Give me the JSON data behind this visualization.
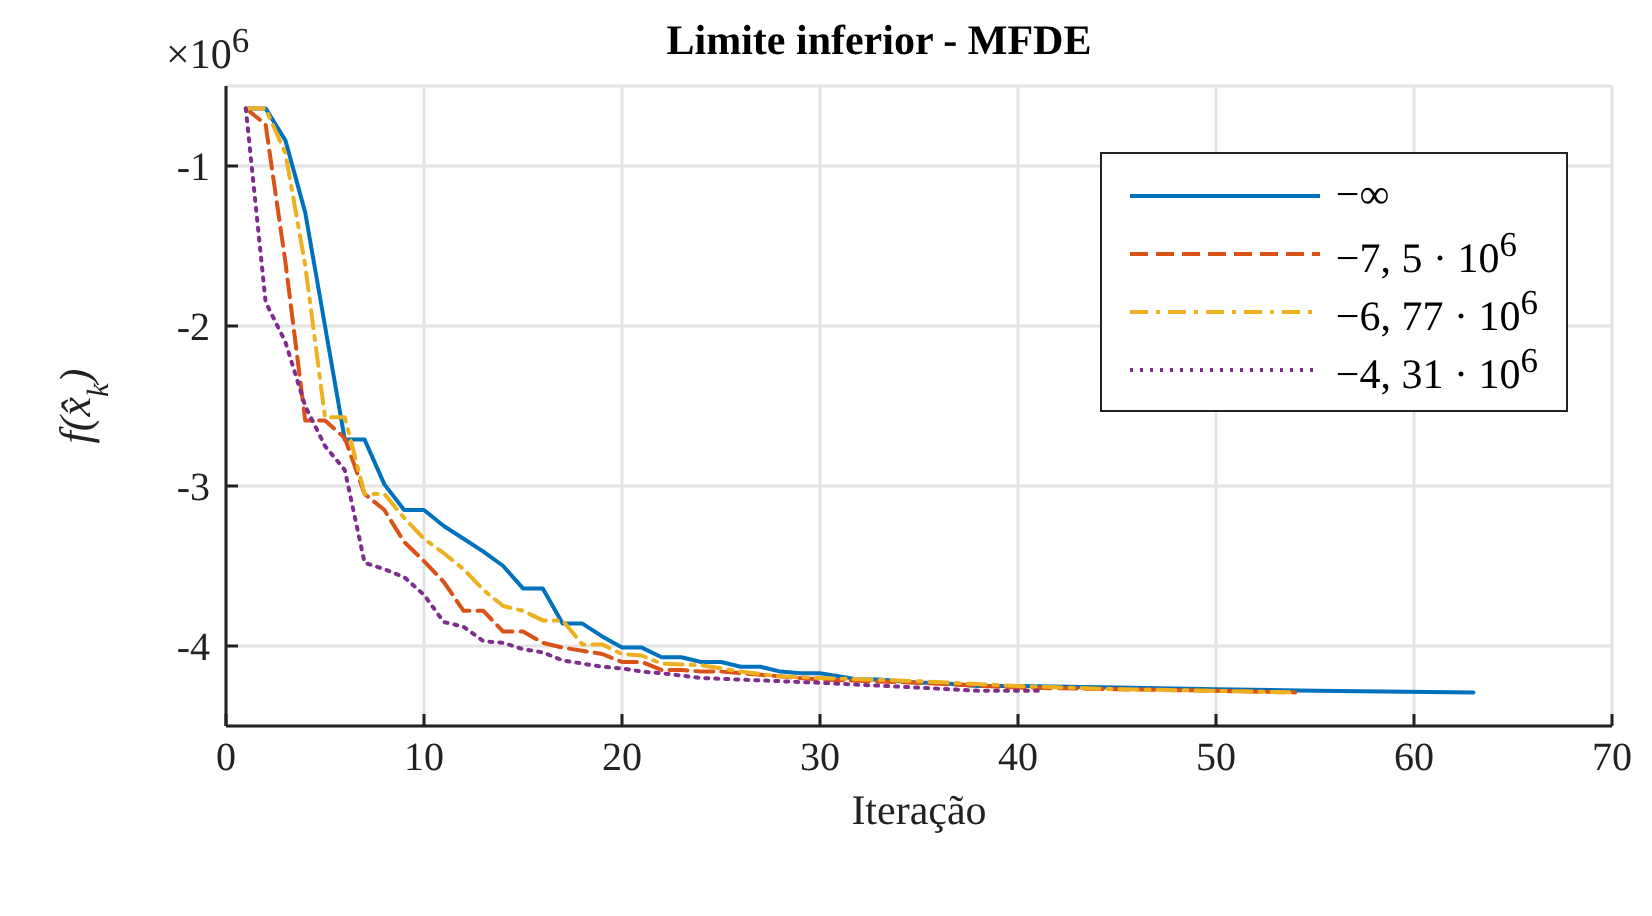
{
  "chart_data": {
    "type": "line",
    "title": "Limite inferior - MFDE",
    "xlabel": "Iteração",
    "ylabel": "f(x̂$_{k}$)",
    "annotations": [
      "×10$^{6}$"
    ],
    "xlim": [
      0,
      70
    ],
    "xticks": [
      0,
      10,
      20,
      30,
      40,
      50,
      60,
      70
    ],
    "ylim": [
      -4.5,
      -0.5
    ],
    "yticks": [
      -4,
      -3,
      -2,
      -1
    ],
    "grid": true,
    "legend": "top right",
    "marker": "none",
    "series": [
      {
        "name": "−∞",
        "color": "#0072bd",
        "line_style": "solid",
        "x": [
          1,
          2,
          3,
          4,
          5,
          6,
          7,
          8,
          9,
          10,
          11,
          12,
          13,
          14,
          15,
          16,
          17,
          18,
          19,
          20,
          21,
          22,
          23,
          24,
          25,
          26,
          27,
          28,
          29,
          30,
          31,
          32,
          33,
          34,
          35,
          36,
          37,
          38,
          40,
          45,
          50,
          55,
          63
        ],
        "values": [
          -0.64,
          -0.64,
          -0.84,
          -1.29,
          -2.0,
          -2.71,
          -2.71,
          -2.99,
          -3.15,
          -3.15,
          -3.25,
          -3.33,
          -3.41,
          -3.5,
          -3.64,
          -3.64,
          -3.86,
          -3.86,
          -3.94,
          -4.01,
          -4.01,
          -4.07,
          -4.07,
          -4.1,
          -4.1,
          -4.13,
          -4.13,
          -4.16,
          -4.17,
          -4.17,
          -4.19,
          -4.21,
          -4.21,
          -4.22,
          -4.23,
          -4.23,
          -4.24,
          -4.25,
          -4.25,
          -4.26,
          -4.27,
          -4.28,
          -4.29
        ]
      },
      {
        "name": "−7, 5 · 10$^{6}$",
        "color": "#d95319",
        "line_style": "dashed",
        "x": [
          1,
          2,
          3,
          4,
          5,
          6,
          7,
          8,
          9,
          10,
          11,
          12,
          13,
          14,
          15,
          16,
          17,
          18,
          19,
          20,
          21,
          22,
          23,
          24,
          25,
          27,
          30,
          35,
          40,
          45,
          50,
          54
        ],
        "values": [
          -0.64,
          -0.74,
          -1.6,
          -2.59,
          -2.59,
          -2.7,
          -3.05,
          -3.15,
          -3.35,
          -3.47,
          -3.6,
          -3.78,
          -3.78,
          -3.91,
          -3.91,
          -3.98,
          -4.01,
          -4.03,
          -4.05,
          -4.1,
          -4.1,
          -4.15,
          -4.15,
          -4.16,
          -4.16,
          -4.18,
          -4.21,
          -4.23,
          -4.26,
          -4.27,
          -4.28,
          -4.29
        ]
      },
      {
        "name": "−6, 77 · 10$^{6}$",
        "color": "#edb120",
        "line_style": "dashdot",
        "x": [
          1,
          2,
          3,
          4,
          5,
          6,
          7,
          8,
          9,
          10,
          11,
          12,
          13,
          14,
          15,
          16,
          17,
          18,
          19,
          20,
          21,
          22,
          24,
          26,
          28,
          30,
          35,
          40,
          45,
          50,
          54
        ],
        "values": [
          -0.64,
          -0.64,
          -0.92,
          -1.62,
          -2.57,
          -2.57,
          -3.05,
          -3.05,
          -3.2,
          -3.33,
          -3.42,
          -3.52,
          -3.65,
          -3.75,
          -3.78,
          -3.84,
          -3.84,
          -3.99,
          -3.99,
          -4.05,
          -4.06,
          -4.11,
          -4.12,
          -4.16,
          -4.19,
          -4.2,
          -4.22,
          -4.25,
          -4.27,
          -4.28,
          -4.29
        ]
      },
      {
        "name": "−4, 31 · 10$^{6}$",
        "color": "#7e2f8e",
        "line_style": "dotted",
        "x": [
          1,
          2,
          3,
          4,
          5,
          6,
          7,
          8,
          9,
          10,
          11,
          12,
          13,
          14,
          15,
          16,
          17,
          18,
          19,
          20,
          21,
          22,
          24,
          26,
          28,
          30,
          35,
          38,
          41
        ],
        "values": [
          -0.64,
          -1.85,
          -2.1,
          -2.5,
          -2.75,
          -2.9,
          -3.48,
          -3.52,
          -3.57,
          -3.68,
          -3.85,
          -3.88,
          -3.97,
          -3.98,
          -4.02,
          -4.04,
          -4.09,
          -4.11,
          -4.13,
          -4.14,
          -4.16,
          -4.17,
          -4.2,
          -4.21,
          -4.22,
          -4.23,
          -4.26,
          -4.28,
          -4.28
        ]
      }
    ]
  }
}
